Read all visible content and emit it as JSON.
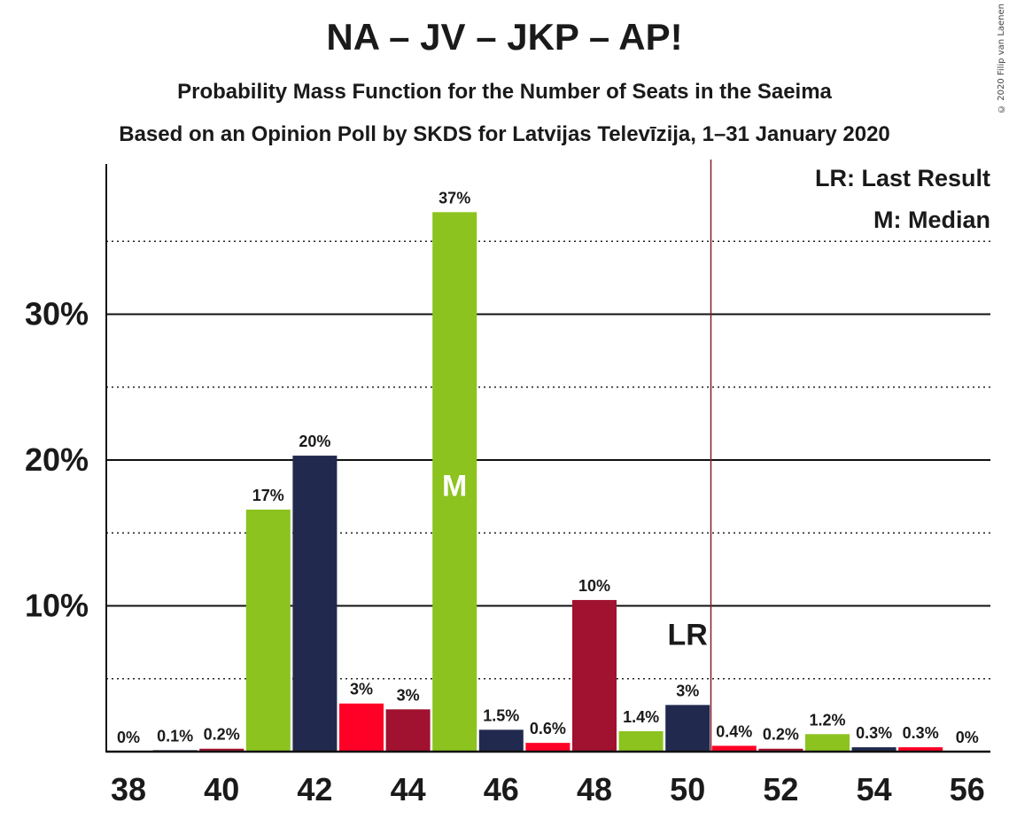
{
  "title": "NA – JV – JKP – AP!",
  "subtitle": "Probability Mass Function for the Number of Seats in the Saeima",
  "subtitle2": "Based on an Opinion Poll by SKDS for Latvijas Televīzija, 1–31 January 2020",
  "copyright": "© 2020 Filip van Laenen",
  "legend": {
    "lr": "LR: Last Result",
    "m": "M: Median"
  },
  "markers": {
    "median_label": "M",
    "median_seat": 45,
    "last_result_label": "LR",
    "last_result_seat": 50
  },
  "colors": {
    "green": "#8cc31f",
    "navy": "#212a4e",
    "red": "#ff0026",
    "crimson": "#a0122f",
    "lr_line": "#8b1a2c"
  },
  "chart_data": {
    "type": "bar",
    "x": [
      38,
      39,
      40,
      41,
      42,
      43,
      44,
      45,
      46,
      47,
      48,
      49,
      50,
      51,
      52,
      53,
      54,
      55,
      56
    ],
    "values": [
      0,
      0.1,
      0.2,
      16.6,
      20.3,
      3.3,
      2.9,
      37.0,
      1.5,
      0.6,
      10.4,
      1.4,
      3.2,
      0.4,
      0.2,
      1.2,
      0.3,
      0.3,
      0
    ],
    "data_labels": [
      "0%",
      "0.1%",
      "0.2%",
      "17%",
      "20%",
      "3%",
      "3%",
      "37%",
      "1.5%",
      "0.6%",
      "10%",
      "1.4%",
      "3%",
      "0.4%",
      "0.2%",
      "1.2%",
      "0.3%",
      "0.3%",
      "0%"
    ],
    "bar_colors": [
      "green",
      "navy",
      "crimson",
      "green",
      "navy",
      "red",
      "crimson",
      "green",
      "navy",
      "red",
      "crimson",
      "green",
      "navy",
      "red",
      "crimson",
      "green",
      "navy",
      "red",
      "crimson"
    ],
    "xticks": [
      38,
      40,
      42,
      44,
      46,
      48,
      50,
      52,
      54,
      56
    ],
    "yticks": [
      10,
      20,
      30
    ],
    "ytick_labels": [
      "10%",
      "20%",
      "30%"
    ],
    "dotted_gridlines": [
      5,
      15,
      25,
      35
    ],
    "ylim": [
      0,
      40
    ],
    "xlim": [
      37.5,
      56.5
    ],
    "grid": true,
    "legend_position": "top-right"
  }
}
